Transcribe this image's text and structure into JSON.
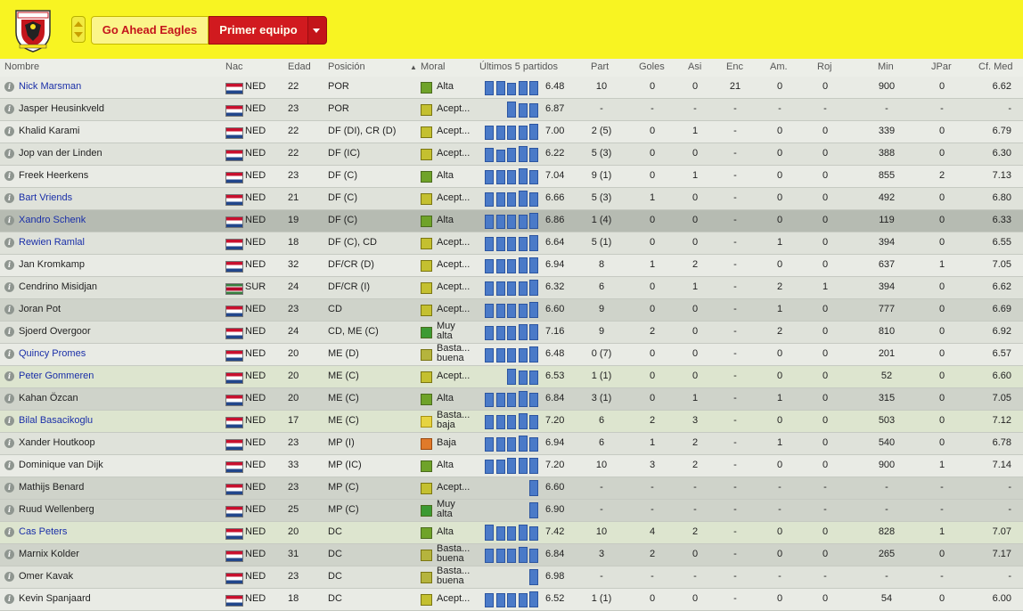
{
  "header": {
    "club_name": "Go Ahead Eagles",
    "team_label": "Primer equipo",
    "crest_icon": "go-ahead-eagles-crest"
  },
  "columns": {
    "nombre": "Nombre",
    "nac": "Nac",
    "edad": "Edad",
    "posicion": "Posición",
    "moral": "Moral",
    "ultimos": "Últimos 5 partidos",
    "part": "Part",
    "goles": "Goles",
    "asi": "Asi",
    "enc": "Enc",
    "am": "Am.",
    "roj": "Roj",
    "min": "Min",
    "jpar": "JPar",
    "cf": "Cf. Med"
  },
  "players": [
    {
      "name": "Nick Marsman",
      "link": true,
      "nat": "NED",
      "age": "22",
      "pos": "POR",
      "moral": "alta",
      "moral_text": "Alta",
      "form": [
        8,
        8,
        7,
        8,
        8
      ],
      "avg": "6.48",
      "part": "10",
      "gol": "0",
      "asi": "0",
      "enc": "21",
      "am": "0",
      "roj": "0",
      "min": "900",
      "jpar": "0",
      "cf": "6.62",
      "style": "a"
    },
    {
      "name": "Jasper Heusinkveld",
      "link": false,
      "nat": "NED",
      "age": "23",
      "pos": "POR",
      "moral": "acept",
      "moral_text": "Acept...",
      "form": [
        0,
        0,
        9,
        8,
        8
      ],
      "avg": "6.87",
      "part": "-",
      "gol": "-",
      "asi": "-",
      "enc": "-",
      "am": "-",
      "roj": "-",
      "min": "-",
      "jpar": "-",
      "cf": "-",
      "style": "b"
    },
    {
      "name": "Khalid Karami",
      "link": false,
      "nat": "NED",
      "age": "22",
      "pos": "DF (DI), CR (D)",
      "moral": "acept",
      "moral_text": "Acept...",
      "form": [
        8,
        8,
        8,
        8,
        9
      ],
      "avg": "7.00",
      "part": "2 (5)",
      "gol": "0",
      "asi": "1",
      "enc": "-",
      "am": "0",
      "roj": "0",
      "min": "339",
      "jpar": "0",
      "cf": "6.79",
      "style": "a"
    },
    {
      "name": "Jop van der Linden",
      "link": false,
      "nat": "NED",
      "age": "22",
      "pos": "DF (IC)",
      "moral": "acept",
      "moral_text": "Acept...",
      "form": [
        8,
        7,
        8,
        9,
        8
      ],
      "avg": "6.22",
      "part": "5 (3)",
      "gol": "0",
      "asi": "0",
      "enc": "-",
      "am": "0",
      "roj": "0",
      "min": "388",
      "jpar": "0",
      "cf": "6.30",
      "style": "b"
    },
    {
      "name": "Freek Heerkens",
      "link": false,
      "nat": "NED",
      "age": "23",
      "pos": "DF (C)",
      "moral": "alta",
      "moral_text": "Alta",
      "form": [
        8,
        8,
        8,
        9,
        8
      ],
      "avg": "7.04",
      "part": "9 (1)",
      "gol": "0",
      "asi": "1",
      "enc": "-",
      "am": "0",
      "roj": "0",
      "min": "855",
      "jpar": "2",
      "cf": "7.13",
      "style": "a"
    },
    {
      "name": "Bart Vriends",
      "link": true,
      "nat": "NED",
      "age": "21",
      "pos": "DF (C)",
      "moral": "acept",
      "moral_text": "Acept...",
      "form": [
        8,
        8,
        8,
        9,
        8
      ],
      "avg": "6.66",
      "part": "5 (3)",
      "gol": "1",
      "asi": "0",
      "enc": "-",
      "am": "0",
      "roj": "0",
      "min": "492",
      "jpar": "0",
      "cf": "6.80",
      "style": "b"
    },
    {
      "name": "Xandro Schenk",
      "link": true,
      "nat": "NED",
      "age": "19",
      "pos": "DF (C)",
      "moral": "alta",
      "moral_text": "Alta",
      "form": [
        8,
        8,
        8,
        8,
        9
      ],
      "avg": "6.86",
      "part": "1 (4)",
      "gol": "0",
      "asi": "0",
      "enc": "-",
      "am": "0",
      "roj": "0",
      "min": "119",
      "jpar": "0",
      "cf": "6.33",
      "style": "sel"
    },
    {
      "name": "Rewien Ramlal",
      "link": true,
      "nat": "NED",
      "age": "18",
      "pos": "DF (C), CD",
      "moral": "acept",
      "moral_text": "Acept...",
      "form": [
        8,
        8,
        8,
        8,
        9
      ],
      "avg": "6.64",
      "part": "5 (1)",
      "gol": "0",
      "asi": "0",
      "enc": "-",
      "am": "1",
      "roj": "0",
      "min": "394",
      "jpar": "0",
      "cf": "6.55",
      "style": "b"
    },
    {
      "name": "Jan Kromkamp",
      "link": false,
      "nat": "NED",
      "age": "32",
      "pos": "DF/CR (D)",
      "moral": "acept",
      "moral_text": "Acept...",
      "form": [
        8,
        8,
        8,
        9,
        9
      ],
      "avg": "6.94",
      "part": "8",
      "gol": "1",
      "asi": "2",
      "enc": "-",
      "am": "0",
      "roj": "0",
      "min": "637",
      "jpar": "1",
      "cf": "7.05",
      "style": "a"
    },
    {
      "name": "Cendrino Misidjan",
      "link": false,
      "nat": "SUR",
      "age": "24",
      "pos": "DF/CR (I)",
      "moral": "acept",
      "moral_text": "Acept...",
      "form": [
        8,
        8,
        8,
        8,
        9
      ],
      "avg": "6.32",
      "part": "6",
      "gol": "0",
      "asi": "1",
      "enc": "-",
      "am": "2",
      "roj": "1",
      "min": "394",
      "jpar": "0",
      "cf": "6.62",
      "style": "b"
    },
    {
      "name": "Joran Pot",
      "link": false,
      "nat": "NED",
      "age": "23",
      "pos": "CD",
      "moral": "acept",
      "moral_text": "Acept...",
      "form": [
        8,
        8,
        8,
        8,
        9
      ],
      "avg": "6.60",
      "part": "9",
      "gol": "0",
      "asi": "0",
      "enc": "-",
      "am": "1",
      "roj": "0",
      "min": "777",
      "jpar": "0",
      "cf": "6.69",
      "style": "hl"
    },
    {
      "name": "Sjoerd Overgoor",
      "link": false,
      "nat": "NED",
      "age": "24",
      "pos": "CD, ME (C)",
      "moral": "muy",
      "moral_text": "Muy alta",
      "form": [
        8,
        8,
        8,
        9,
        9
      ],
      "avg": "7.16",
      "part": "9",
      "gol": "2",
      "asi": "0",
      "enc": "-",
      "am": "2",
      "roj": "0",
      "min": "810",
      "jpar": "0",
      "cf": "6.92",
      "style": "b"
    },
    {
      "name": "Quincy Promes",
      "link": true,
      "nat": "NED",
      "age": "20",
      "pos": "ME (D)",
      "moral": "basta",
      "moral_text": "Basta... buena",
      "form": [
        8,
        8,
        8,
        8,
        9
      ],
      "avg": "6.48",
      "part": "0 (7)",
      "gol": "0",
      "asi": "0",
      "enc": "-",
      "am": "0",
      "roj": "0",
      "min": "201",
      "jpar": "0",
      "cf": "6.57",
      "style": "a"
    },
    {
      "name": "Peter Gommeren",
      "link": true,
      "nat": "NED",
      "age": "20",
      "pos": "ME (C)",
      "moral": "acept",
      "moral_text": "Acept...",
      "form": [
        0,
        0,
        9,
        8,
        8
      ],
      "avg": "6.53",
      "part": "1 (1)",
      "gol": "0",
      "asi": "0",
      "enc": "-",
      "am": "0",
      "roj": "0",
      "min": "52",
      "jpar": "0",
      "cf": "6.60",
      "style": "grn"
    },
    {
      "name": "Kahan Özcan",
      "link": false,
      "nat": "NED",
      "age": "20",
      "pos": "ME (C)",
      "moral": "alta",
      "moral_text": "Alta",
      "form": [
        8,
        8,
        8,
        9,
        8
      ],
      "avg": "6.84",
      "part": "3 (1)",
      "gol": "0",
      "asi": "1",
      "enc": "-",
      "am": "1",
      "roj": "0",
      "min": "315",
      "jpar": "0",
      "cf": "7.05",
      "style": "hl"
    },
    {
      "name": "Bilal Basacikoglu",
      "link": true,
      "nat": "NED",
      "age": "17",
      "pos": "ME (C)",
      "moral": "bb",
      "moral_text": "Basta... baja",
      "form": [
        8,
        8,
        8,
        9,
        8
      ],
      "avg": "7.20",
      "part": "6",
      "gol": "2",
      "asi": "3",
      "enc": "-",
      "am": "0",
      "roj": "0",
      "min": "503",
      "jpar": "0",
      "cf": "7.12",
      "style": "grn"
    },
    {
      "name": "Xander Houtkoop",
      "link": false,
      "nat": "NED",
      "age": "23",
      "pos": "MP (I)",
      "moral": "baja",
      "moral_text": "Baja",
      "form": [
        8,
        8,
        8,
        9,
        8
      ],
      "avg": "6.94",
      "part": "6",
      "gol": "1",
      "asi": "2",
      "enc": "-",
      "am": "1",
      "roj": "0",
      "min": "540",
      "jpar": "0",
      "cf": "6.78",
      "style": "b"
    },
    {
      "name": "Dominique van Dijk",
      "link": false,
      "nat": "NED",
      "age": "33",
      "pos": "MP (IC)",
      "moral": "alta",
      "moral_text": "Alta",
      "form": [
        8,
        8,
        9,
        9,
        9
      ],
      "avg": "7.20",
      "part": "10",
      "gol": "3",
      "asi": "2",
      "enc": "-",
      "am": "0",
      "roj": "0",
      "min": "900",
      "jpar": "1",
      "cf": "7.14",
      "style": "a"
    },
    {
      "name": "Mathijs Benard",
      "link": false,
      "nat": "NED",
      "age": "23",
      "pos": "MP (C)",
      "moral": "acept",
      "moral_text": "Acept...",
      "form": [
        0,
        0,
        0,
        0,
        9
      ],
      "avg": "6.60",
      "part": "-",
      "gol": "-",
      "asi": "-",
      "enc": "-",
      "am": "-",
      "roj": "-",
      "min": "-",
      "jpar": "-",
      "cf": "-",
      "style": "hl"
    },
    {
      "name": "Ruud Wellenberg",
      "link": false,
      "nat": "NED",
      "age": "25",
      "pos": "MP (C)",
      "moral": "muy",
      "moral_text": "Muy alta",
      "form": [
        0,
        0,
        0,
        0,
        9
      ],
      "avg": "6.90",
      "part": "-",
      "gol": "-",
      "asi": "-",
      "enc": "-",
      "am": "-",
      "roj": "-",
      "min": "-",
      "jpar": "-",
      "cf": "-",
      "style": "hl"
    },
    {
      "name": "Cas Peters",
      "link": true,
      "nat": "NED",
      "age": "20",
      "pos": "DC",
      "moral": "alta",
      "moral_text": "Alta",
      "form": [
        9,
        8,
        8,
        9,
        8
      ],
      "avg": "7.42",
      "part": "10",
      "gol": "4",
      "asi": "2",
      "enc": "-",
      "am": "0",
      "roj": "0",
      "min": "828",
      "jpar": "1",
      "cf": "7.07",
      "style": "grn"
    },
    {
      "name": "Marnix Kolder",
      "link": false,
      "nat": "NED",
      "age": "31",
      "pos": "DC",
      "moral": "basta",
      "moral_text": "Basta... buena",
      "form": [
        8,
        8,
        8,
        9,
        8
      ],
      "avg": "6.84",
      "part": "3",
      "gol": "2",
      "asi": "0",
      "enc": "-",
      "am": "0",
      "roj": "0",
      "min": "265",
      "jpar": "0",
      "cf": "7.17",
      "style": "hl"
    },
    {
      "name": "Omer Kavak",
      "link": false,
      "nat": "NED",
      "age": "23",
      "pos": "DC",
      "moral": "basta",
      "moral_text": "Basta... buena",
      "form": [
        0,
        0,
        0,
        0,
        9
      ],
      "avg": "6.98",
      "part": "-",
      "gol": "-",
      "asi": "-",
      "enc": "-",
      "am": "-",
      "roj": "-",
      "min": "-",
      "jpar": "-",
      "cf": "-",
      "style": "b"
    },
    {
      "name": "Kevin Spanjaard",
      "link": false,
      "nat": "NED",
      "age": "18",
      "pos": "DC",
      "moral": "acept",
      "moral_text": "Acept...",
      "form": [
        8,
        8,
        8,
        8,
        9
      ],
      "avg": "6.52",
      "part": "1 (1)",
      "gol": "0",
      "asi": "0",
      "enc": "-",
      "am": "0",
      "roj": "0",
      "min": "54",
      "jpar": "0",
      "cf": "6.00",
      "style": "a"
    }
  ]
}
